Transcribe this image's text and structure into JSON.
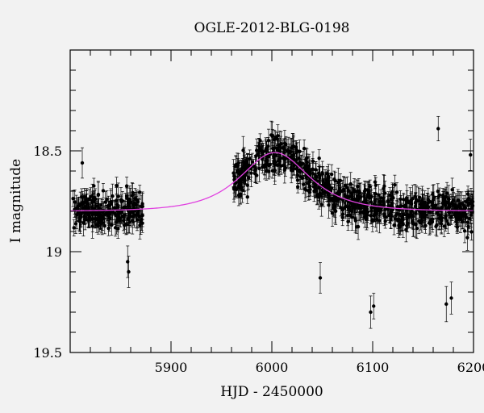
{
  "chart_data": {
    "type": "scatter",
    "title": "OGLE-2012-BLG-0198",
    "xlabel": "HJD - 2450000",
    "ylabel": "I magnitude",
    "xlim": [
      5800,
      6200
    ],
    "ylim": [
      19.5,
      18.0
    ],
    "y_inverted": true,
    "x_ticks": [
      5900,
      6000,
      6100,
      6200
    ],
    "y_ticks": [
      18.5,
      19,
      19.5
    ],
    "y_tick_labels": [
      "18.5",
      "19",
      "19.5"
    ],
    "grid": false,
    "colors": {
      "points": "#000000",
      "model": "#e040e0",
      "background": "#f2f2f2"
    },
    "series": [
      {
        "kind": "points_with_errorbars",
        "segments": [
          {
            "x_range": [
              5802,
              5872
            ],
            "baseline_mag": 18.8,
            "scatter_mag": 0.1,
            "error_mag": 0.05
          },
          {
            "x_range": [
              5962,
              6200
            ],
            "baseline_mag": 18.8,
            "scatter_mag": 0.11,
            "error_mag": 0.05
          }
        ],
        "outliers": [
          {
            "x": 6165,
            "y": 18.39
          },
          {
            "x": 6098,
            "y": 19.3
          },
          {
            "x": 6101,
            "y": 19.27
          },
          {
            "x": 6173,
            "y": 19.26
          },
          {
            "x": 6178,
            "y": 19.23
          },
          {
            "x": 5857,
            "y": 19.05
          },
          {
            "x": 5858,
            "y": 19.1
          },
          {
            "x": 6048,
            "y": 19.13
          },
          {
            "x": 5812,
            "y": 18.56
          },
          {
            "x": 6197,
            "y": 18.52
          },
          {
            "x": 6003,
            "y": 18.57
          }
        ]
      },
      {
        "kind": "model",
        "model": "Paczynski",
        "t0": 6003,
        "tE": 40,
        "u0": 1.05,
        "baseline_mag": 18.8
      }
    ]
  }
}
